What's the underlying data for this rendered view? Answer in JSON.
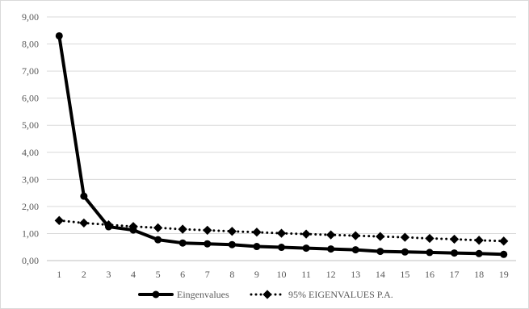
{
  "chart_data": {
    "type": "line",
    "title": "",
    "xlabel": "",
    "ylabel": "",
    "x": [
      1,
      2,
      3,
      4,
      5,
      6,
      7,
      8,
      9,
      10,
      11,
      12,
      13,
      14,
      15,
      16,
      17,
      18,
      19
    ],
    "x_tick_labels": [
      "1",
      "2",
      "3",
      "4",
      "5",
      "6",
      "7",
      "8",
      "9",
      "10",
      "11",
      "12",
      "13",
      "14",
      "15",
      "16",
      "17",
      "18",
      "19"
    ],
    "y_tick_labels": [
      "0,00",
      "1,00",
      "2,00",
      "3,00",
      "4,00",
      "5,00",
      "6,00",
      "7,00",
      "8,00",
      "9,00"
    ],
    "ylim": [
      0,
      9
    ],
    "grid": "horizontal",
    "legend_position": "bottom",
    "series": [
      {
        "name": "Eingenvalues",
        "style": "solid",
        "color": "#000000",
        "values": [
          8.3,
          2.38,
          1.25,
          1.13,
          0.77,
          0.65,
          0.62,
          0.59,
          0.52,
          0.49,
          0.46,
          0.43,
          0.4,
          0.34,
          0.32,
          0.3,
          0.28,
          0.26,
          0.23
        ]
      },
      {
        "name": "95% EIGENVALUES P.A.",
        "style": "dotted",
        "color": "#000000",
        "values": [
          1.48,
          1.39,
          1.32,
          1.26,
          1.21,
          1.16,
          1.12,
          1.08,
          1.05,
          1.01,
          0.98,
          0.95,
          0.92,
          0.89,
          0.86,
          0.82,
          0.79,
          0.75,
          0.72
        ]
      }
    ]
  }
}
